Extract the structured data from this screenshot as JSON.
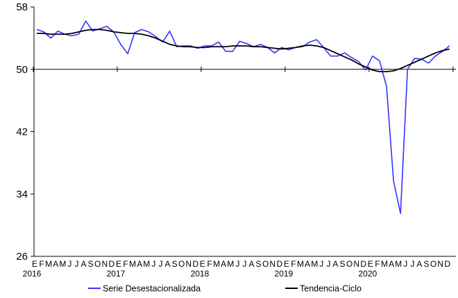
{
  "chart_data": {
    "type": "line",
    "yticks": [
      26,
      34,
      42,
      50,
      58
    ],
    "ylim": [
      26,
      58
    ],
    "grid": false,
    "hline": 50,
    "month_letters": [
      "E",
      "F",
      "M",
      "A",
      "M",
      "J",
      "J",
      "A",
      "S",
      "O",
      "N",
      "D"
    ],
    "years": [
      "2016",
      "2017",
      "2018",
      "2019",
      "2020"
    ],
    "legend_position": "bottom",
    "series": [
      {
        "name": "Serie Desestacionalizada",
        "color": "#3333ff",
        "values": [
          55.1,
          54.8,
          54.0,
          54.9,
          54.5,
          54.3,
          54.5,
          56.2,
          54.9,
          55.2,
          55.5,
          54.8,
          53.2,
          52.0,
          54.7,
          55.1,
          54.8,
          54.2,
          53.5,
          54.9,
          52.9,
          53.0,
          53.0,
          52.7,
          53.0,
          53.0,
          53.5,
          52.3,
          52.3,
          53.6,
          53.3,
          52.9,
          53.2,
          52.8,
          52.1,
          52.8,
          52.5,
          52.8,
          52.9,
          53.5,
          53.8,
          52.8,
          51.7,
          51.7,
          52.1,
          51.5,
          51.0,
          49.9,
          51.7,
          51.1,
          47.8,
          35.7,
          31.5,
          50.0,
          51.4,
          51.3,
          50.8,
          51.7,
          52.3,
          53.0
        ]
      },
      {
        "name": "Tendencia-Ciclo",
        "color": "#000000",
        "values": [
          54.6,
          54.6,
          54.5,
          54.5,
          54.5,
          54.6,
          54.8,
          55.0,
          55.1,
          55.1,
          55.0,
          54.8,
          54.7,
          54.6,
          54.6,
          54.5,
          54.3,
          54.0,
          53.6,
          53.2,
          53.0,
          52.9,
          52.9,
          52.8,
          52.8,
          52.9,
          52.9,
          52.9,
          53.0,
          53.0,
          53.0,
          52.9,
          52.9,
          52.8,
          52.7,
          52.6,
          52.7,
          52.8,
          53.0,
          53.1,
          53.0,
          52.8,
          52.4,
          52.0,
          51.6,
          51.2,
          50.7,
          50.3,
          49.9,
          49.7,
          49.7,
          49.8,
          50.1,
          50.5,
          50.9,
          51.3,
          51.7,
          52.1,
          52.4,
          52.6
        ]
      }
    ]
  }
}
